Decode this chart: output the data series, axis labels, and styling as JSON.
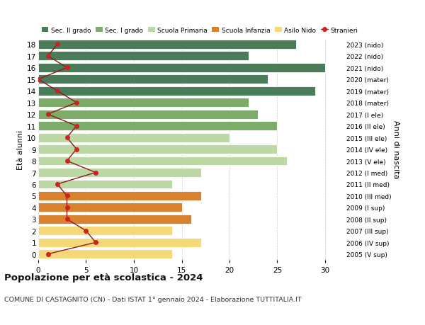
{
  "ages": [
    18,
    17,
    16,
    15,
    14,
    13,
    12,
    11,
    10,
    9,
    8,
    7,
    6,
    5,
    4,
    3,
    2,
    1,
    0
  ],
  "years_labels": [
    "2005 (V sup)",
    "2006 (IV sup)",
    "2007 (III sup)",
    "2008 (II sup)",
    "2009 (I sup)",
    "2010 (III med)",
    "2011 (II med)",
    "2012 (I med)",
    "2013 (V ele)",
    "2014 (IV ele)",
    "2015 (III ele)",
    "2016 (II ele)",
    "2017 (I ele)",
    "2018 (mater)",
    "2019 (mater)",
    "2020 (mater)",
    "2021 (nido)",
    "2022 (nido)",
    "2023 (nido)"
  ],
  "bar_values": [
    27,
    22,
    30,
    24,
    29,
    22,
    23,
    25,
    20,
    25,
    26,
    17,
    14,
    17,
    15,
    16,
    14,
    17,
    14
  ],
  "bar_colors": [
    "#4a7c59",
    "#4a7c59",
    "#4a7c59",
    "#4a7c59",
    "#4a7c59",
    "#7dab6a",
    "#7dab6a",
    "#7dab6a",
    "#bcd9a5",
    "#bcd9a5",
    "#bcd9a5",
    "#bcd9a5",
    "#bcd9a5",
    "#d9822e",
    "#d9822e",
    "#d9822e",
    "#f5d87a",
    "#f5d87a",
    "#f5d87a"
  ],
  "stranieri_values": [
    2,
    1,
    3,
    0,
    2,
    4,
    1,
    4,
    3,
    4,
    3,
    6,
    2,
    3,
    3,
    3,
    5,
    6,
    1
  ],
  "legend_labels": [
    "Sec. II grado",
    "Sec. I grado",
    "Scuola Primaria",
    "Scuola Infanzia",
    "Asilo Nido",
    "Stranieri"
  ],
  "legend_colors": [
    "#4a7c59",
    "#7dab6a",
    "#bcd9a5",
    "#d9822e",
    "#f5d87a",
    "#cc2222"
  ],
  "title_bold": "Popolazione per età scolastica - 2024",
  "subtitle": "COMUNE DI CASTAGNITO (CN) - Dati ISTAT 1° gennaio 2024 - Elaborazione TUTTITALIA.IT",
  "ylabel_left": "Età alunni",
  "ylabel_right": "Anni di nascita",
  "xlim": [
    0,
    32
  ],
  "xticks": [
    0,
    5,
    10,
    15,
    20,
    25,
    30
  ],
  "background_color": "#ffffff"
}
